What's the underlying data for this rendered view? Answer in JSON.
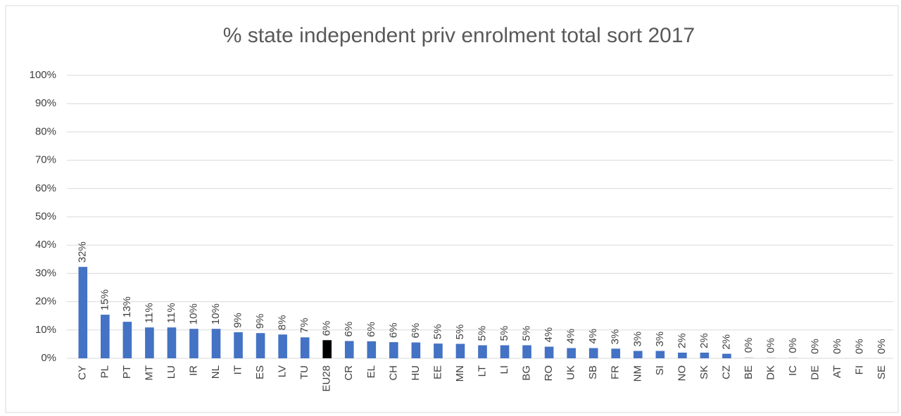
{
  "chart_data": {
    "type": "bar",
    "title": "% state independent priv enrolment total sort 2017",
    "categories": [
      "CY",
      "PL",
      "PT",
      "MT",
      "LU",
      "IR",
      "NL",
      "IT",
      "ES",
      "LV",
      "TU",
      "EU28",
      "CR",
      "EL",
      "CH",
      "HU",
      "EE",
      "MN",
      "LT",
      "LI",
      "BG",
      "RO",
      "UK",
      "SB",
      "FR",
      "NM",
      "SI",
      "NO",
      "SK",
      "CZ",
      "BE",
      "DK",
      "IC",
      "DE",
      "AT",
      "FI",
      "SE"
    ],
    "values": [
      32.3,
      15.4,
      12.9,
      10.9,
      10.9,
      10.4,
      10.4,
      9.2,
      8.9,
      8.4,
      7.4,
      6.4,
      6.1,
      6.0,
      5.7,
      5.6,
      5.2,
      5.1,
      4.6,
      4.6,
      4.6,
      4.1,
      3.6,
      3.6,
      3.4,
      2.6,
      2.6,
      2.0,
      2.0,
      1.6,
      0.4,
      0.3,
      0.3,
      0,
      0,
      0,
      0
    ],
    "value_labels": [
      "32%",
      "15%",
      "13%",
      "11%",
      "11%",
      "10%",
      "10%",
      "9%",
      "9%",
      "8%",
      "7%",
      "6%",
      "6%",
      "6%",
      "6%",
      "6%",
      "5%",
      "5%",
      "5%",
      "5%",
      "5%",
      "4%",
      "4%",
      "4%",
      "3%",
      "3%",
      "3%",
      "2%",
      "2%",
      "2%",
      "0%",
      "0%",
      "0%",
      "0%",
      "0%",
      "0%",
      "0%"
    ],
    "colors": [
      "#4472c4",
      "#4472c4",
      "#4472c4",
      "#4472c4",
      "#4472c4",
      "#4472c4",
      "#4472c4",
      "#4472c4",
      "#4472c4",
      "#4472c4",
      "#4472c4",
      "#000000",
      "#4472c4",
      "#4472c4",
      "#4472c4",
      "#4472c4",
      "#4472c4",
      "#4472c4",
      "#4472c4",
      "#4472c4",
      "#4472c4",
      "#4472c4",
      "#4472c4",
      "#4472c4",
      "#4472c4",
      "#4472c4",
      "#4472c4",
      "#4472c4",
      "#4472c4",
      "#4472c4",
      "#d9d9d9",
      "#d9d9d9",
      "#d9d9d9",
      "#4472c4",
      "#4472c4",
      "#4472c4",
      "#4472c4"
    ],
    "ylim": [
      0,
      100
    ],
    "yticks": [
      {
        "value": 0,
        "label": "0%"
      },
      {
        "value": 10,
        "label": "10%"
      },
      {
        "value": 20,
        "label": "20%"
      },
      {
        "value": 30,
        "label": "30%"
      },
      {
        "value": 40,
        "label": "40%"
      },
      {
        "value": 50,
        "label": "50%"
      },
      {
        "value": 60,
        "label": "60%"
      },
      {
        "value": 70,
        "label": "70%"
      },
      {
        "value": 80,
        "label": "80%"
      },
      {
        "value": 90,
        "label": "90%"
      },
      {
        "value": 100,
        "label": "100%"
      }
    ],
    "grid": true
  }
}
